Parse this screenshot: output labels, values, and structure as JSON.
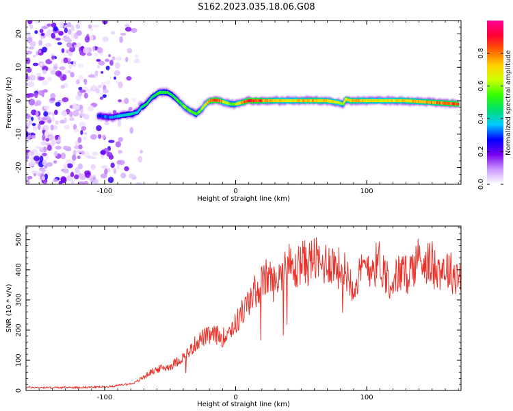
{
  "title": "S162.2023.035.18.06.G08",
  "chart_data": [
    {
      "type": "heatmap",
      "name": "spectrogram",
      "xlabel": "Height of straight line (km)",
      "ylabel": "Frequency (Hz)",
      "xlim": [
        -160,
        172
      ],
      "ylim": [
        -25,
        24
      ],
      "xticks": [
        -100,
        0,
        100
      ],
      "yticks": [
        -20,
        -10,
        0,
        10,
        20
      ],
      "colorbar": {
        "label": "Normalized spectral amplitude",
        "range": [
          0,
          1
        ],
        "ticks": [
          0.0,
          0.2,
          0.4,
          0.6,
          0.8
        ],
        "tick_labels": [
          "0.0",
          "0.2",
          "0.4",
          "0.6",
          "0.8"
        ],
        "colors": [
          "#ffffff",
          "#cc99ff",
          "#7700ee",
          "#0000ff",
          "#00c8ff",
          "#00e070",
          "#33ff00",
          "#ccff00",
          "#ffd000",
          "#ff6000",
          "#ff0033",
          "#ff0099"
        ]
      },
      "ridge": {
        "x": [
          -105,
          -95,
          -88,
          -80,
          -75,
          -72,
          -68,
          -64,
          -58,
          -52,
          -48,
          -44,
          -40,
          -35,
          -30,
          -27,
          -24,
          -20,
          -16,
          -12,
          -8,
          -4,
          0,
          5,
          10,
          20,
          30,
          40,
          50,
          60,
          70,
          78,
          82,
          84,
          88,
          95,
          110,
          130,
          150,
          170
        ],
        "y": [
          -4.5,
          -5,
          -4.5,
          -4,
          -3.5,
          -2,
          -1,
          1,
          2.5,
          2.5,
          1.5,
          0,
          -1.5,
          -3,
          -4,
          -3,
          -1.5,
          0,
          0.2,
          0,
          -0.5,
          -1,
          -1,
          -0.5,
          0,
          0,
          0,
          0,
          0,
          0,
          0,
          -0.5,
          -1,
          0.5,
          0,
          0,
          0,
          0,
          -0.5,
          -1
        ],
        "amplitude": [
          0.3,
          0.35,
          0.4,
          0.45,
          0.4,
          0.45,
          0.5,
          0.5,
          0.55,
          0.5,
          0.5,
          0.55,
          0.6,
          0.6,
          0.55,
          0.6,
          0.65,
          0.8,
          0.95,
          0.85,
          0.7,
          0.6,
          0.6,
          0.8,
          0.95,
          0.85,
          0.75,
          0.7,
          0.75,
          0.8,
          0.75,
          0.7,
          0.6,
          0.75,
          0.8,
          0.75,
          0.7,
          0.75,
          0.8,
          0.9
        ]
      },
      "noise_region_x": [
        -160,
        -75
      ]
    },
    {
      "type": "line",
      "name": "snr",
      "xlabel": "Height of straight line (km)",
      "ylabel": "SNR (10 * v/v)",
      "xlim": [
        -160,
        172
      ],
      "ylim": [
        0,
        545
      ],
      "xticks": [
        -100,
        0,
        100
      ],
      "yticks": [
        0,
        100,
        200,
        300,
        400,
        500
      ],
      "color": "#e8322a",
      "series": [
        {
          "x": [
            -160,
            -150,
            -140,
            -130,
            -120,
            -110,
            -100,
            -92,
            -85,
            -80,
            -75,
            -70,
            -65,
            -60,
            -55,
            -50,
            -45,
            -40,
            -35,
            -30,
            -25,
            -20,
            -15,
            -10,
            -5,
            0,
            5,
            10,
            15,
            20,
            25,
            30,
            35,
            40,
            45,
            50,
            55,
            60,
            65,
            70,
            75,
            80,
            85,
            90,
            95,
            100,
            105,
            110,
            115,
            120,
            125,
            130,
            135,
            140,
            145,
            150,
            155,
            160,
            165,
            170
          ],
          "values": [
            10,
            10,
            9,
            10,
            10,
            11,
            12,
            15,
            20,
            22,
            30,
            45,
            60,
            70,
            75,
            80,
            95,
            110,
            130,
            160,
            175,
            180,
            185,
            175,
            200,
            220,
            260,
            290,
            330,
            355,
            380,
            350,
            400,
            420,
            390,
            430,
            420,
            440,
            410,
            430,
            420,
            400,
            390,
            350,
            380,
            420,
            410,
            430,
            380,
            360,
            390,
            380,
            410,
            440,
            430,
            420,
            400,
            410,
            390,
            380
          ]
        }
      ]
    }
  ]
}
